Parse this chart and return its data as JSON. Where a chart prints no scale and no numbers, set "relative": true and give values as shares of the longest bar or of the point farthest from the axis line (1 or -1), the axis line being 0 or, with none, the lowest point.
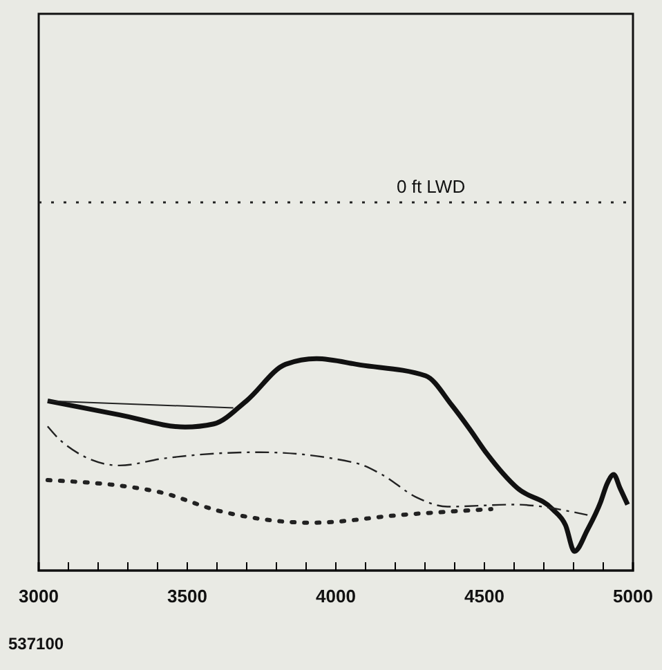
{
  "chart_data": {
    "type": "line",
    "relative": true,
    "tick_labels": "x",
    "grid": false,
    "marker": "none",
    "xlim": [
      3000,
      5000
    ],
    "xticks": [
      {
        "value": 3000,
        "label": "3000"
      },
      {
        "value": 3100,
        "label": null
      },
      {
        "value": 3200,
        "label": null
      },
      {
        "value": 3300,
        "label": null
      },
      {
        "value": 3400,
        "label": null
      },
      3500,
      {
        "value": 3600,
        "label": null
      },
      {
        "value": 3700,
        "label": null
      },
      {
        "value": 3800,
        "label": null
      },
      {
        "value": 3900,
        "label": null
      },
      4000,
      {
        "value": 4100,
        "label": null
      },
      {
        "value": 4200,
        "label": null
      },
      {
        "value": 4300,
        "label": null
      },
      {
        "value": 4400,
        "label": null
      },
      4500,
      {
        "value": 4600,
        "label": null
      },
      {
        "value": 4700,
        "label": null
      },
      {
        "value": 4800,
        "label": null
      },
      {
        "value": 4900,
        "label": null
      },
      5000
    ],
    "series": [
      {
        "color": "#111111",
        "line_style": "solid",
        "x": [
          3030,
          3272,
          3493,
          3589,
          3699,
          3831,
          3935,
          4082,
          4302,
          4391,
          4449,
          4509,
          4611,
          4729,
          4773,
          4803,
          4847,
          4891,
          4913,
          4935,
          4957,
          4982
        ],
        "values": [
          -0.569,
          -0.609,
          -0.644,
          -0.635,
          -0.569,
          -0.464,
          -0.448,
          -0.466,
          -0.497,
          -0.582,
          -0.648,
          -0.721,
          -0.819,
          -0.879,
          -0.925,
          -1,
          -0.938,
          -0.859,
          -0.806,
          -0.78,
          -0.82,
          -0.866
        ]
      },
      {
        "color": "#222222",
        "line_style": "solid",
        "x": [
          3030,
          3655
        ],
        "values": [
          -0.569,
          -0.589
        ]
      },
      {
        "color": "#222222",
        "line_style": "dashdot",
        "x": [
          3030,
          3081,
          3272,
          3419,
          3743,
          4067,
          4155,
          4273,
          4376,
          4597,
          4847
        ],
        "values": [
          -0.642,
          -0.688,
          -0.754,
          -0.734,
          -0.716,
          -0.747,
          -0.78,
          -0.846,
          -0.872,
          -0.866,
          -0.896
        ]
      },
      {
        "color": "#222222",
        "line_style": "dotted",
        "x": [
          3030,
          3405,
          3611,
          3920,
          4229,
          4523
        ],
        "values": [
          -0.796,
          -0.83,
          -0.885,
          -0.918,
          -0.895,
          -0.879
        ]
      }
    ],
    "ref_lines": [
      {
        "axis": "y",
        "value": 0,
        "label": "0 ft LWD",
        "color": "#222222",
        "line_style": "dotted"
      }
    ],
    "annotations": [
      "537100"
    ]
  }
}
